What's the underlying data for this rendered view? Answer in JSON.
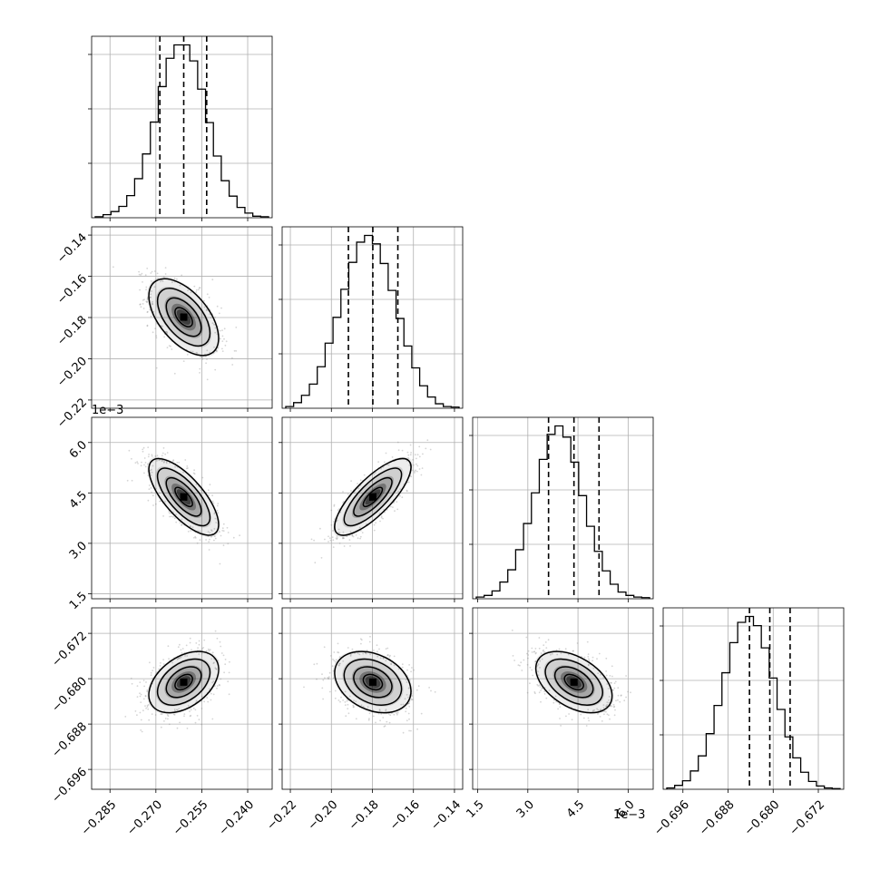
{
  "chart_data": {
    "type": "corner",
    "grid": true,
    "params": [
      {
        "range": [
          -0.291,
          -0.232
        ],
        "ticks": [
          -0.285,
          -0.27,
          -0.255,
          -0.24
        ],
        "tick_labels": [
          "−0.285",
          "−0.270",
          "−0.255",
          "−0.240"
        ],
        "offset_label": "",
        "quantiles": [
          -0.2687,
          -0.2609,
          -0.2534
        ],
        "hist": [
          0.2,
          0.6,
          1.2,
          2.2,
          4.3,
          7.6,
          12.4,
          18.6,
          25.5,
          31.0,
          33.6,
          33.6,
          30.5,
          25.0,
          18.5,
          12.0,
          7.2,
          4.2,
          2.0,
          0.9,
          0.3,
          0.2
        ]
      },
      {
        "range": [
          -0.224,
          -0.136
        ],
        "ticks": [
          -0.22,
          -0.2,
          -0.18,
          -0.16,
          -0.14
        ],
        "tick_labels": [
          "−0.22",
          "−0.20",
          "−0.18",
          "−0.16",
          "−0.14"
        ],
        "offset_label": "",
        "quantiles": [
          -0.1917,
          -0.1798,
          -0.1676
        ],
        "hist": [
          0.3,
          1.0,
          2.3,
          4.3,
          7.4,
          11.6,
          16.2,
          21.2,
          26.0,
          29.6,
          30.8,
          29.3,
          25.8,
          21.0,
          16.0,
          11.1,
          7.2,
          4.0,
          2.0,
          0.8,
          0.3,
          0.2
        ]
      },
      {
        "range": [
          1.35,
          6.75
        ],
        "ticks": [
          1.5,
          3.0,
          4.5,
          6.0
        ],
        "tick_labels": [
          "1.5",
          "3.0",
          "4.5",
          "6.0"
        ],
        "offset_label": "1e−3",
        "quantiles": [
          3.62,
          4.38,
          5.13
        ],
        "hist": [
          0.3,
          0.6,
          1.4,
          3.0,
          5.2,
          8.8,
          13.5,
          19.0,
          25.0,
          29.5,
          31.0,
          29.0,
          24.5,
          18.5,
          13.0,
          8.5,
          5.0,
          2.6,
          1.2,
          0.6,
          0.3,
          0.2
        ]
      },
      {
        "range": [
          -0.6995,
          -0.6675
        ],
        "ticks": [
          -0.696,
          -0.688,
          -0.68,
          -0.672
        ],
        "tick_labels": [
          "−0.696",
          "−0.688",
          "−0.680",
          "−0.672"
        ],
        "offset_label": "",
        "quantiles": [
          -0.6842,
          -0.6806,
          -0.677
        ],
        "hist": [
          0.2,
          0.6,
          1.3,
          2.8,
          5.1,
          8.5,
          12.8,
          17.8,
          22.4,
          25.5,
          26.4,
          25.0,
          21.6,
          17.0,
          12.2,
          8.0,
          4.8,
          2.6,
          1.2,
          0.5,
          0.2,
          0.1
        ]
      }
    ],
    "pairs": [
      {
        "row": 1,
        "col": 0,
        "center": [
          -0.2609,
          -0.1798
        ],
        "sigma": [
          0.0057,
          0.0093
        ],
        "rho": -0.55
      },
      {
        "row": 2,
        "col": 0,
        "center": [
          -0.2609,
          4.38
        ],
        "sigma": [
          0.0057,
          0.57
        ],
        "rho": -0.72
      },
      {
        "row": 2,
        "col": 1,
        "center": [
          -0.1798,
          4.38
        ],
        "sigma": [
          0.0093,
          0.57
        ],
        "rho": 0.78
      },
      {
        "row": 3,
        "col": 0,
        "center": [
          -0.2609,
          -0.6806
        ],
        "sigma": [
          0.0057,
          0.0027
        ],
        "rho": 0.42
      },
      {
        "row": 3,
        "col": 1,
        "center": [
          -0.1798,
          -0.6806
        ],
        "sigma": [
          0.0093,
          0.0027
        ],
        "rho": -0.3
      },
      {
        "row": 3,
        "col": 2,
        "center": [
          4.38,
          -0.6806
        ],
        "sigma": [
          0.57,
          0.0027
        ],
        "rho": -0.45
      }
    ],
    "contour_levels": [
      0.5,
      1.0,
      1.5,
      2.0
    ],
    "colors": {
      "line": "#000000",
      "grid": "#b0b0b0",
      "scatter": "#888888"
    }
  }
}
